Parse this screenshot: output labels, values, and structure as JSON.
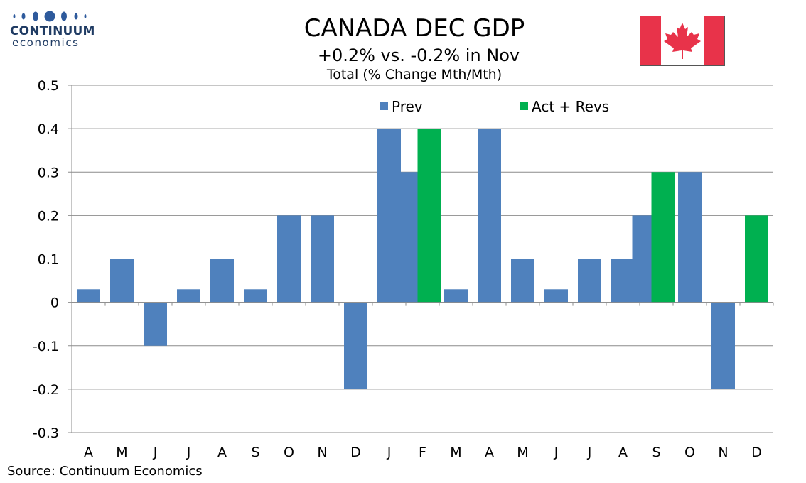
{
  "logo": {
    "name": "CONTINUUM",
    "sub": "economics"
  },
  "title": "CANADA DEC GDP",
  "subtitle": "+0.2% vs. -0.2% in Nov",
  "subtitle2": "Total (% Change Mth/Mth)",
  "source": "Source: Continuum Economics",
  "colors": {
    "prev": "#4f81bd",
    "act": "#00b050",
    "flag_red": "#e8334a"
  },
  "chart_data": {
    "type": "bar",
    "title": "CANADA DEC GDP",
    "subtitle": "+0.2% vs. -0.2% in Nov",
    "ylabel": "Total (% Change Mth/Mth)",
    "ylim": [
      -0.3,
      0.5
    ],
    "yticks": [
      "0.5",
      "0.4",
      "0.3",
      "0.2",
      "0.1",
      "0",
      "-0.1",
      "-0.2",
      "-0.3"
    ],
    "grid": true,
    "legend_position": "top-right",
    "categories": [
      "A",
      "M",
      "J",
      "J",
      "A",
      "S",
      "O",
      "N",
      "D",
      "J",
      "F",
      "M",
      "A",
      "M",
      "J",
      "J",
      "A",
      "S",
      "O",
      "N",
      "D"
    ],
    "series": [
      {
        "name": "Prev",
        "color": "#4f81bd",
        "values": [
          0.03,
          0.1,
          -0.1,
          0.03,
          0.1,
          0.03,
          0.2,
          0.2,
          -0.2,
          0.4,
          0.3,
          0.03,
          0.4,
          0.1,
          0.03,
          0.1,
          0.1,
          0.2,
          0.3,
          -0.2,
          null
        ]
      },
      {
        "name": "Act + Revs",
        "color": "#00b050",
        "values": [
          null,
          null,
          null,
          null,
          null,
          null,
          null,
          null,
          null,
          null,
          0.4,
          null,
          null,
          null,
          null,
          null,
          null,
          0.3,
          null,
          null,
          0.2
        ]
      }
    ]
  }
}
